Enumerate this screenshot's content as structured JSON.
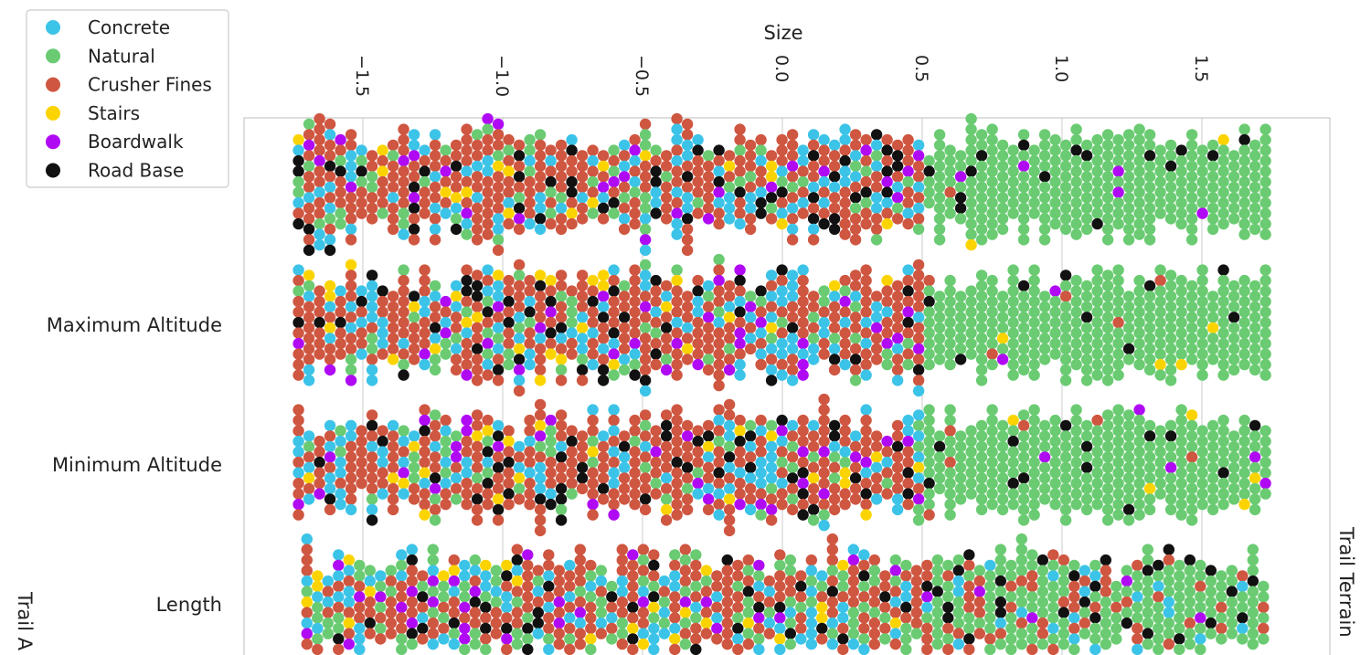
{
  "chart_data": {
    "type": "scatter",
    "subtype": "beeswarm",
    "xlabel": "Size",
    "x_ticks": [
      -1.5,
      -1.0,
      -0.5,
      0.0,
      0.5,
      1.0,
      1.5
    ],
    "x_tick_labels": [
      "−1.5",
      "−1.0",
      "−0.5",
      "0.0",
      "0.5",
      "1.0",
      "1.5"
    ],
    "xlim": [
      -1.8,
      2.0
    ],
    "x_axis_position": "top",
    "grid": true,
    "rows": [
      {
        "label": "",
        "x_range": [
          -1.73,
          1.75
        ]
      },
      {
        "label": "Maximum Altitude",
        "x_range": [
          -1.73,
          1.75
        ]
      },
      {
        "label": "Minimum Altitude",
        "x_range": [
          -1.73,
          1.75
        ]
      },
      {
        "label": "Length",
        "x_range": [
          -1.7,
          1.75
        ]
      }
    ],
    "right_label": "Trail Terrain",
    "left_label_partial": "Trail A",
    "legend": {
      "position": "top-left",
      "entries": [
        {
          "name": "Concrete",
          "color": "#3cc3e8"
        },
        {
          "name": "Natural",
          "color": "#6acb72"
        },
        {
          "name": "Crusher Fines",
          "color": "#cf5640"
        },
        {
          "name": "Stairs",
          "color": "#fbd400"
        },
        {
          "name": "Boardwalk",
          "color": "#b00af5"
        },
        {
          "name": "Road Base",
          "color": "#111111"
        }
      ]
    }
  }
}
